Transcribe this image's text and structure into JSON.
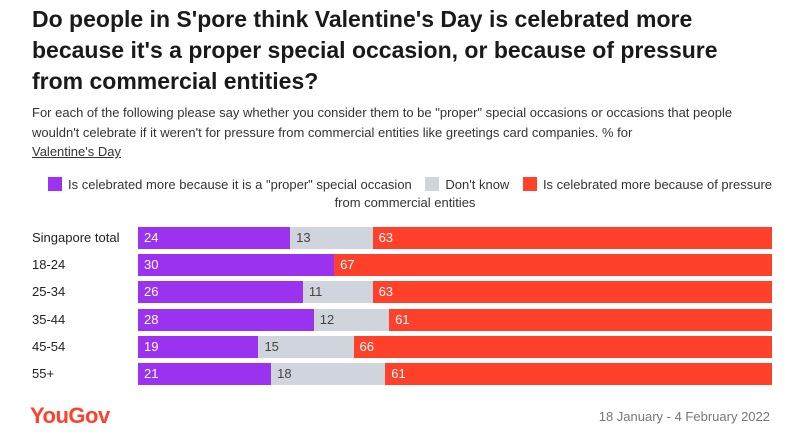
{
  "title": "Do people in S'pore think Valentine's Day is celebrated more because it's a proper special occasion, or because of pressure from commercial entities?",
  "subtitle": "For each of the following please say whether you consider them to be \"proper\" special occasions or occasions that people wouldn't celebrate if it weren't for pressure from commercial entities like greetings card companies. % for",
  "subtitle_underlined": "Valentine's Day",
  "colors": {
    "proper": "#9b32f0",
    "dont_know": "#d0d4dc",
    "pressure": "#ff412c"
  },
  "chart_data": {
    "type": "bar",
    "stacked": true,
    "orientation": "horizontal",
    "categories": [
      "Singapore total",
      "18-24",
      "25-34",
      "35-44",
      "45-54",
      "55+"
    ],
    "series": [
      {
        "name": "Is celebrated more because it is a \"proper\" special occasion",
        "values": [
          24,
          30,
          26,
          28,
          19,
          21
        ]
      },
      {
        "name": "Don't know",
        "values": [
          13,
          null,
          11,
          12,
          15,
          18
        ]
      },
      {
        "name": "Is celebrated more because of pressure from commercial entities",
        "values": [
          63,
          67,
          63,
          61,
          66,
          61
        ]
      }
    ],
    "xlim": [
      0,
      100
    ],
    "legend_position": "top"
  },
  "footer": {
    "logo": "YouGov",
    "date": "18 January - 4 February 2022"
  }
}
